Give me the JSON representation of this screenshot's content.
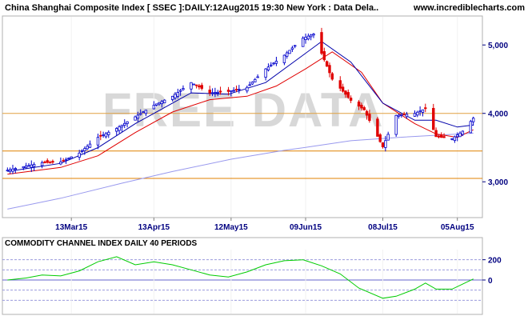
{
  "header": {
    "title": "China Shanghai Composite Index [ SSEC ]:DAILY:12Aug2015 19:30 New York : Data Dela..",
    "site": "www.incrediblecharts.com",
    "watermark": "FREE DATA"
  },
  "colors": {
    "up_candle": "#0000cc",
    "down_candle": "#e00000",
    "ma_short": "#0000aa",
    "ma_mid": "#e00000",
    "ma_long": "#9999ee",
    "support_line": "#e08000",
    "cci_line": "#00cc00",
    "axis_label": "#000080"
  },
  "chart_data": [
    {
      "type": "candlestick",
      "title": "China Shanghai Composite Index [ SSEC ]:DAILY:12Aug2015 19:30 New York : Data Dela..",
      "y_ticks": [
        3000,
        4000,
        5000
      ],
      "y_tick_labels": [
        "3,000",
        "4,000",
        "5,000"
      ],
      "ylim": [
        2500,
        5400
      ],
      "x_ticks": [
        "2015-03-13",
        "2015-04-13",
        "2015-05-12",
        "2015-06-09",
        "2015-07-08",
        "2015-08-05"
      ],
      "x_tick_labels": [
        "13Mar15",
        "13Apr15",
        "12May15",
        "09Jun15",
        "08Jul15",
        "05Aug15"
      ],
      "xlim": [
        "2015-02-16",
        "2015-08-12"
      ],
      "horizontal_lines": [
        4000,
        3450,
        3050
      ],
      "close_series": [
        [
          "2015-02-17",
          3170
        ],
        [
          "2015-02-24",
          3230
        ],
        [
          "2015-03-02",
          3280
        ],
        [
          "2015-03-09",
          3290
        ],
        [
          "2015-03-16",
          3420
        ],
        [
          "2015-03-23",
          3650
        ],
        [
          "2015-03-30",
          3780
        ],
        [
          "2015-04-06",
          3950
        ],
        [
          "2015-04-13",
          4120
        ],
        [
          "2015-04-20",
          4250
        ],
        [
          "2015-04-27",
          4450
        ],
        [
          "2015-05-04",
          4300
        ],
        [
          "2015-05-11",
          4320
        ],
        [
          "2015-05-18",
          4380
        ],
        [
          "2015-05-25",
          4650
        ],
        [
          "2015-06-01",
          4850
        ],
        [
          "2015-06-08",
          5100
        ],
        [
          "2015-06-12",
          5160
        ],
        [
          "2015-06-19",
          4500
        ],
        [
          "2015-06-26",
          4190
        ],
        [
          "2015-07-01",
          4050
        ],
        [
          "2015-07-08",
          3510
        ],
        [
          "2015-07-13",
          3970
        ],
        [
          "2015-07-20",
          4000
        ],
        [
          "2015-07-24",
          4070
        ],
        [
          "2015-07-28",
          3660
        ],
        [
          "2015-08-03",
          3630
        ],
        [
          "2015-08-07",
          3740
        ],
        [
          "2015-08-11",
          3930
        ]
      ],
      "moving_averages": {
        "ma_short": [
          [
            "2015-02-17",
            3150
          ],
          [
            "2015-03-09",
            3270
          ],
          [
            "2015-03-23",
            3500
          ],
          [
            "2015-04-06",
            3850
          ],
          [
            "2015-04-20",
            4150
          ],
          [
            "2015-04-27",
            4300
          ],
          [
            "2015-05-11",
            4280
          ],
          [
            "2015-05-25",
            4450
          ],
          [
            "2015-06-08",
            4850
          ],
          [
            "2015-06-15",
            5050
          ],
          [
            "2015-06-26",
            4750
          ],
          [
            "2015-07-08",
            4150
          ],
          [
            "2015-07-20",
            3900
          ],
          [
            "2015-07-28",
            3900
          ],
          [
            "2015-08-05",
            3800
          ],
          [
            "2015-08-11",
            3830
          ]
        ],
        "ma_mid": [
          [
            "2015-02-17",
            3110
          ],
          [
            "2015-03-09",
            3210
          ],
          [
            "2015-03-23",
            3380
          ],
          [
            "2015-04-06",
            3720
          ],
          [
            "2015-04-20",
            4020
          ],
          [
            "2015-05-04",
            4200
          ],
          [
            "2015-05-18",
            4250
          ],
          [
            "2015-05-29",
            4400
          ],
          [
            "2015-06-09",
            4650
          ],
          [
            "2015-06-19",
            4900
          ],
          [
            "2015-06-30",
            4600
          ],
          [
            "2015-07-08",
            4150
          ],
          [
            "2015-07-20",
            3850
          ],
          [
            "2015-07-28",
            3700
          ],
          [
            "2015-08-05",
            3650
          ],
          [
            "2015-08-11",
            3760
          ]
        ],
        "ma_long": [
          [
            "2015-02-17",
            2600
          ],
          [
            "2015-03-09",
            2760
          ],
          [
            "2015-04-01",
            2980
          ],
          [
            "2015-04-20",
            3150
          ],
          [
            "2015-05-12",
            3330
          ],
          [
            "2015-06-01",
            3460
          ],
          [
            "2015-06-12",
            3520
          ],
          [
            "2015-06-26",
            3600
          ],
          [
            "2015-07-14",
            3650
          ],
          [
            "2015-08-11",
            3710
          ]
        ]
      }
    },
    {
      "type": "line",
      "title": "COMMODITY CHANNEL INDEX DAILY 40 PERIODS",
      "y_tick_labels": [
        "200",
        "0"
      ],
      "y_ticks": [
        200,
        0
      ],
      "reference_lines": [
        200,
        100,
        0,
        -100,
        -200
      ],
      "ylim": [
        -300,
        300
      ],
      "series": [
        {
          "values": [
            [
              "2015-02-17",
              0
            ],
            [
              "2015-02-24",
              20
            ],
            [
              "2015-03-02",
              50
            ],
            [
              "2015-03-09",
              40
            ],
            [
              "2015-03-16",
              90
            ],
            [
              "2015-03-23",
              180
            ],
            [
              "2015-03-30",
              230
            ],
            [
              "2015-04-06",
              150
            ],
            [
              "2015-04-13",
              180
            ],
            [
              "2015-04-20",
              150
            ],
            [
              "2015-04-27",
              100
            ],
            [
              "2015-05-04",
              50
            ],
            [
              "2015-05-11",
              30
            ],
            [
              "2015-05-18",
              80
            ],
            [
              "2015-05-25",
              150
            ],
            [
              "2015-06-01",
              190
            ],
            [
              "2015-06-08",
              200
            ],
            [
              "2015-06-15",
              140
            ],
            [
              "2015-06-22",
              60
            ],
            [
              "2015-06-29",
              -80
            ],
            [
              "2015-07-08",
              -180
            ],
            [
              "2015-07-13",
              -160
            ],
            [
              "2015-07-20",
              -90
            ],
            [
              "2015-07-24",
              -30
            ],
            [
              "2015-07-28",
              -90
            ],
            [
              "2015-08-03",
              -90
            ],
            [
              "2015-08-07",
              -40
            ],
            [
              "2015-08-11",
              10
            ]
          ]
        }
      ]
    }
  ]
}
